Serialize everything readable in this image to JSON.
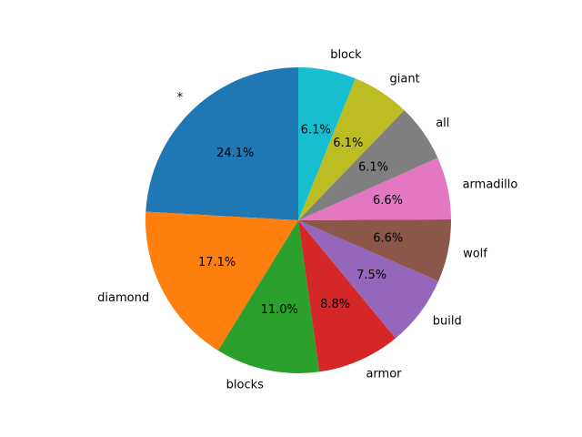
{
  "chart_data": {
    "type": "pie",
    "title": "",
    "start_angle_deg": 90,
    "direction": "counterclockwise",
    "slices": [
      {
        "label": "*",
        "value": 24.1,
        "pct_text": "24.1%",
        "color": "#1f77b4"
      },
      {
        "label": "diamond",
        "value": 17.1,
        "pct_text": "17.1%",
        "color": "#ff7f0e"
      },
      {
        "label": "blocks",
        "value": 11.0,
        "pct_text": "11.0%",
        "color": "#2ca02c"
      },
      {
        "label": "armor",
        "value": 8.8,
        "pct_text": "8.8%",
        "color": "#d62728"
      },
      {
        "label": "build",
        "value": 7.5,
        "pct_text": "7.5%",
        "color": "#9467bd"
      },
      {
        "label": "wolf",
        "value": 6.6,
        "pct_text": "6.6%",
        "color": "#8c564b"
      },
      {
        "label": "armadillo",
        "value": 6.6,
        "pct_text": "6.6%",
        "color": "#e377c2"
      },
      {
        "label": "all",
        "value": 6.1,
        "pct_text": "6.1%",
        "color": "#7f7f7f"
      },
      {
        "label": "giant",
        "value": 6.1,
        "pct_text": "6.1%",
        "color": "#bcbd22"
      },
      {
        "label": "block",
        "value": 6.1,
        "pct_text": "6.1%",
        "color": "#17becf"
      }
    ]
  }
}
